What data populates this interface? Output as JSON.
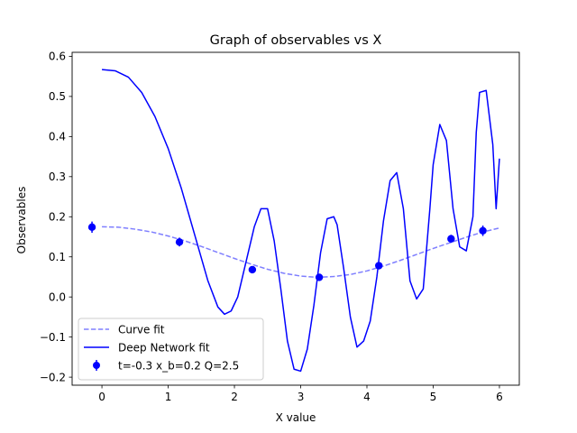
{
  "chart_data": {
    "type": "line",
    "title": "Graph of observables vs X",
    "xlabel": "X value",
    "ylabel": "Observables",
    "xlim": [
      -0.45,
      6.3
    ],
    "ylim": [
      -0.22,
      0.61
    ],
    "xticks": [
      0,
      1,
      2,
      3,
      4,
      5,
      6
    ],
    "yticks": [
      -0.2,
      -0.1,
      0.0,
      0.1,
      0.2,
      0.3,
      0.4,
      0.5,
      0.6
    ],
    "xtick_labels": [
      "0",
      "1",
      "2",
      "3",
      "4",
      "5",
      "6"
    ],
    "ytick_labels": [
      "−0.2",
      "−0.1",
      "0.0",
      "0.1",
      "0.2",
      "0.3",
      "0.4",
      "0.5",
      "0.6"
    ],
    "grid": false,
    "legend_position": "lower-left",
    "series": [
      {
        "name": "Curve fit",
        "kind": "line",
        "style": "dashed",
        "color": "#0000ff",
        "alpha": 0.5,
        "x": [
          0.0,
          0.25,
          0.5,
          0.75,
          1.0,
          1.25,
          1.5,
          1.75,
          2.0,
          2.25,
          2.5,
          2.75,
          3.0,
          3.25,
          3.5,
          3.75,
          4.0,
          4.25,
          4.5,
          4.75,
          5.0,
          5.25,
          5.5,
          5.75,
          6.0
        ],
        "y": [
          0.175,
          0.174,
          0.169,
          0.162,
          0.152,
          0.14,
          0.126,
          0.111,
          0.096,
          0.082,
          0.069,
          0.059,
          0.052,
          0.049,
          0.051,
          0.056,
          0.065,
          0.077,
          0.091,
          0.106,
          0.121,
          0.135,
          0.149,
          0.162,
          0.172
        ]
      },
      {
        "name": "Deep Network fit",
        "kind": "line",
        "style": "solid",
        "color": "#0000ff",
        "x": [
          0.0,
          0.2,
          0.4,
          0.6,
          0.8,
          1.0,
          1.2,
          1.4,
          1.6,
          1.75,
          1.85,
          1.95,
          2.05,
          2.15,
          2.3,
          2.4,
          2.5,
          2.6,
          2.7,
          2.8,
          2.9,
          3.0,
          3.1,
          3.2,
          3.3,
          3.4,
          3.5,
          3.55,
          3.65,
          3.75,
          3.85,
          3.95,
          4.05,
          4.15,
          4.25,
          4.35,
          4.45,
          4.55,
          4.65,
          4.75,
          4.85,
          4.95,
          5.0,
          5.1,
          5.2,
          5.3,
          5.4,
          5.5,
          5.6,
          5.65,
          5.7,
          5.8,
          5.9,
          5.95,
          6.0
        ],
        "y": [
          0.567,
          0.564,
          0.548,
          0.51,
          0.45,
          0.37,
          0.27,
          0.155,
          0.04,
          -0.025,
          -0.043,
          -0.035,
          0.0,
          0.07,
          0.175,
          0.22,
          0.22,
          0.14,
          0.02,
          -0.11,
          -0.18,
          -0.185,
          -0.13,
          -0.02,
          0.11,
          0.195,
          0.2,
          0.18,
          0.07,
          -0.05,
          -0.125,
          -0.11,
          -0.06,
          0.05,
          0.19,
          0.29,
          0.31,
          0.22,
          0.04,
          -0.005,
          0.02,
          0.22,
          0.33,
          0.43,
          0.39,
          0.22,
          0.125,
          0.115,
          0.2,
          0.41,
          0.51,
          0.515,
          0.38,
          0.22,
          0.345
        ]
      },
      {
        "name": "t=-0.3 x_b=0.2 Q=2.5",
        "kind": "errorbar",
        "marker": "circle",
        "color": "#0000ff",
        "x": [
          -0.15,
          1.17,
          2.27,
          3.28,
          4.18,
          5.27,
          5.75
        ],
        "y": [
          0.174,
          0.137,
          0.068,
          0.049,
          0.078,
          0.145,
          0.165
        ],
        "yerr": [
          0.014,
          0.011,
          0.006,
          0.005,
          0.007,
          0.01,
          0.013
        ]
      }
    ]
  }
}
